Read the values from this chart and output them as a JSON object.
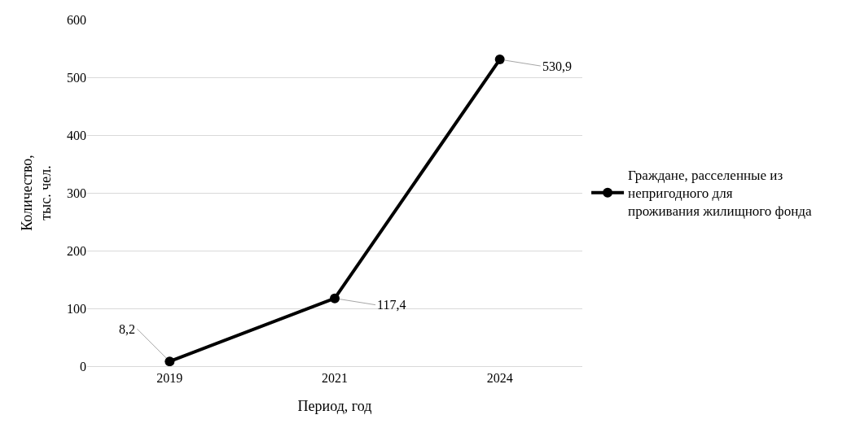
{
  "chart_data": {
    "type": "line",
    "xlabel": "Период, год",
    "ylabel": "Количество, тыс. чел.",
    "categories": [
      "2019",
      "2021",
      "2024"
    ],
    "series": [
      {
        "name": "Граждане, расселенные из непригодного для проживания жилищного фонда",
        "color": "#000000",
        "values": [
          8.2,
          117.4,
          530.9
        ],
        "value_labels": [
          "8,2",
          "117,4",
          "530,9"
        ]
      }
    ],
    "ylim": [
      0,
      600
    ],
    "yticks": [
      0,
      100,
      200,
      300,
      400,
      500,
      600
    ],
    "grid": "y",
    "legend": "right",
    "marker": "circle",
    "line_style": "solid"
  }
}
